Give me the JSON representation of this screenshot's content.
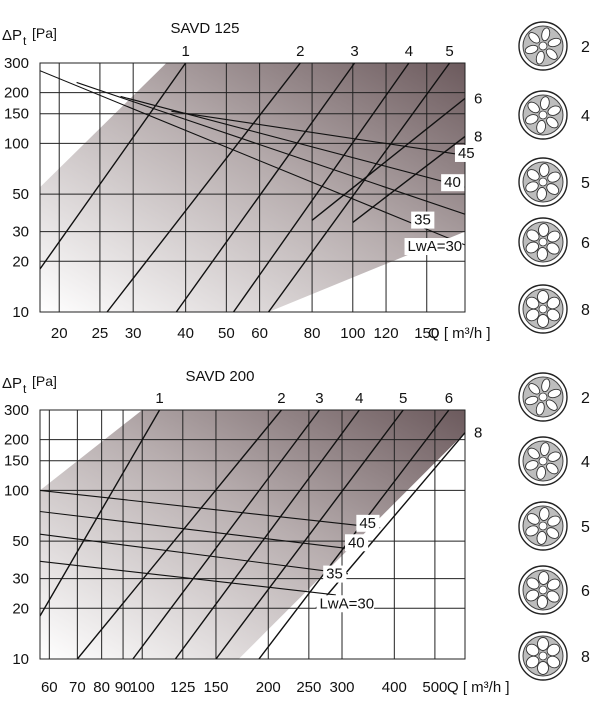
{
  "chart_data": [
    {
      "type": "line",
      "title": "SAVD 125",
      "ylabel_main": "ΔP",
      "ylabel_sub": "t",
      "ylabel_unit": "[Pa]",
      "xlabel": "Q [ m³/h ]",
      "xscale": "log",
      "yscale": "log",
      "xlim": [
        18,
        185
      ],
      "ylim": [
        10,
        300
      ],
      "grid": true,
      "x_ticks": [
        {
          "v": 20,
          "t": "20"
        },
        {
          "v": 25,
          "t": "25"
        },
        {
          "v": 30,
          "t": "30"
        },
        {
          "v": 40,
          "t": "40"
        },
        {
          "v": 50,
          "t": "50"
        },
        {
          "v": 60,
          "t": "60"
        },
        {
          "v": 80,
          "t": "80"
        },
        {
          "v": 100,
          "t": "100"
        },
        {
          "v": 120,
          "t": "120"
        },
        {
          "v": 150,
          "t": "150"
        }
      ],
      "y_ticks": [
        {
          "v": 10,
          "t": "10"
        },
        {
          "v": 20,
          "t": "20"
        },
        {
          "v": 30,
          "t": "30"
        },
        {
          "v": 50,
          "t": "50"
        },
        {
          "v": 100,
          "t": "100"
        },
        {
          "v": 150,
          "t": "150"
        },
        {
          "v": 200,
          "t": "200"
        },
        {
          "v": 300,
          "t": "300"
        }
      ],
      "operating_area": [
        [
          36,
          300
        ],
        [
          185,
          300
        ],
        [
          185,
          30
        ],
        [
          63,
          10
        ],
        [
          18,
          10
        ],
        [
          18,
          55
        ]
      ],
      "setting_lines": [
        {
          "name": "1",
          "p1": [
            18,
            18
          ],
          "p2": [
            40,
            300
          ],
          "label_pos": "top"
        },
        {
          "name": "2",
          "p1": [
            26,
            10
          ],
          "p2": [
            75,
            300
          ],
          "label_pos": "top"
        },
        {
          "name": "3",
          "p1": [
            38,
            10
          ],
          "p2": [
            101,
            300
          ],
          "label_pos": "top"
        },
        {
          "name": "4",
          "p1": [
            52,
            10
          ],
          "p2": [
            136,
            300
          ],
          "label_pos": "top"
        },
        {
          "name": "5",
          "p1": [
            63,
            10
          ],
          "p2": [
            170,
            300
          ],
          "label_pos": "top"
        },
        {
          "name": "6",
          "p1": [
            80,
            35
          ],
          "p2": [
            185,
            185
          ],
          "label_pos": "right"
        },
        {
          "name": "8",
          "p1": [
            100,
            34
          ],
          "p2": [
            185,
            110
          ],
          "label_pos": "right"
        }
      ],
      "sound_lines": [
        {
          "name": "LwA=30",
          "p1": [
            18,
            270
          ],
          "p2": [
            185,
            25
          ]
        },
        {
          "name": "35",
          "p1": [
            22,
            230
          ],
          "p2": [
            185,
            38
          ]
        },
        {
          "name": "40",
          "p1": [
            28,
            190
          ],
          "p2": [
            185,
            55
          ]
        },
        {
          "name": "45",
          "p1": [
            37,
            155
          ],
          "p2": [
            185,
            85
          ]
        }
      ],
      "sound_labels": [
        {
          "t": "LwA=30",
          "x": 135,
          "y": 23
        },
        {
          "t": "35",
          "x": 140,
          "y": 33
        },
        {
          "t": "40",
          "x": 165,
          "y": 55
        },
        {
          "t": "45",
          "x": 178,
          "y": 82
        }
      ]
    },
    {
      "type": "line",
      "title": "SAVD 200",
      "ylabel_main": "ΔP",
      "ylabel_sub": "t",
      "ylabel_unit": "[Pa]",
      "xlabel": "Q [ m³/h ]",
      "xscale": "log",
      "yscale": "log",
      "xlim": [
        57,
        590
      ],
      "ylim": [
        10,
        300
      ],
      "grid": true,
      "x_ticks": [
        {
          "v": 60,
          "t": "60"
        },
        {
          "v": 70,
          "t": "70"
        },
        {
          "v": 80,
          "t": "80"
        },
        {
          "v": 90,
          "t": "90"
        },
        {
          "v": 100,
          "t": "100"
        },
        {
          "v": 125,
          "t": "125"
        },
        {
          "v": 150,
          "t": "150"
        },
        {
          "v": 200,
          "t": "200"
        },
        {
          "v": 250,
          "t": "250"
        },
        {
          "v": 300,
          "t": "300"
        },
        {
          "v": 400,
          "t": "400"
        },
        {
          "v": 500,
          "t": "500"
        }
      ],
      "y_ticks": [
        {
          "v": 10,
          "t": "10"
        },
        {
          "v": 20,
          "t": "20"
        },
        {
          "v": 30,
          "t": "30"
        },
        {
          "v": 50,
          "t": "50"
        },
        {
          "v": 100,
          "t": "100"
        },
        {
          "v": 150,
          "t": "150"
        },
        {
          "v": 200,
          "t": "200"
        },
        {
          "v": 300,
          "t": "300"
        }
      ],
      "operating_area": [
        [
          100,
          300
        ],
        [
          590,
          300
        ],
        [
          590,
          220
        ],
        [
          170,
          10
        ],
        [
          57,
          10
        ],
        [
          57,
          100
        ]
      ],
      "setting_lines": [
        {
          "name": "1",
          "p1": [
            57,
            18
          ],
          "p2": [
            110,
            300
          ],
          "label_pos": "top"
        },
        {
          "name": "2",
          "p1": [
            70,
            10
          ],
          "p2": [
            215,
            300
          ],
          "label_pos": "top"
        },
        {
          "name": "3",
          "p1": [
            95,
            10
          ],
          "p2": [
            265,
            300
          ],
          "label_pos": "top"
        },
        {
          "name": "4",
          "p1": [
            120,
            10
          ],
          "p2": [
            330,
            300
          ],
          "label_pos": "top"
        },
        {
          "name": "5",
          "p1": [
            150,
            10
          ],
          "p2": [
            420,
            300
          ],
          "label_pos": "top"
        },
        {
          "name": "6",
          "p1": [
            190,
            10
          ],
          "p2": [
            540,
            300
          ],
          "label_pos": "top"
        },
        {
          "name": "8",
          "p1": [
            260,
            20
          ],
          "p2": [
            590,
            220
          ],
          "label_pos": "right"
        }
      ],
      "sound_lines": [
        {
          "name": "LwA=30",
          "p1": [
            57,
            38
          ],
          "p2": [
            290,
            24
          ]
        },
        {
          "name": "35",
          "p1": [
            57,
            55
          ],
          "p2": [
            310,
            32
          ]
        },
        {
          "name": "40",
          "p1": [
            57,
            75
          ],
          "p2": [
            340,
            44
          ]
        },
        {
          "name": "45",
          "p1": [
            57,
            100
          ],
          "p2": [
            370,
            60
          ]
        }
      ],
      "sound_labels": [
        {
          "t": "LwA=30",
          "x": 265,
          "y": 20
        },
        {
          "t": "35",
          "x": 275,
          "y": 30
        },
        {
          "t": "40",
          "x": 310,
          "y": 46
        },
        {
          "t": "45",
          "x": 330,
          "y": 60
        }
      ]
    }
  ],
  "setting_icons": [
    {
      "label": "2",
      "pattern": "2"
    },
    {
      "label": "4",
      "pattern": "4"
    },
    {
      "label": "5",
      "pattern": "5"
    },
    {
      "label": "6",
      "pattern": "6"
    },
    {
      "label": "8",
      "pattern": "8"
    }
  ]
}
